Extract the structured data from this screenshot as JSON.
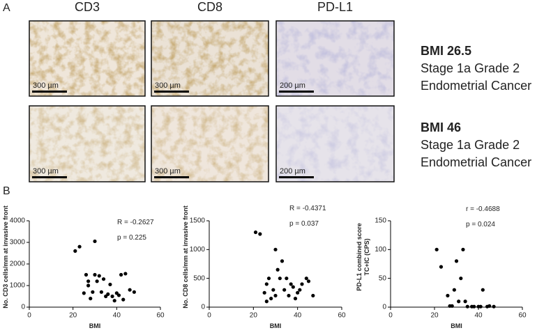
{
  "panel_a": {
    "label": "A",
    "columns": [
      "CD3",
      "CD8",
      "PD-L1"
    ],
    "rows": [
      {
        "bmi": "BMI 26.5",
        "lines": [
          "Stage 1a Grade 2",
          "Endometrial Cancer"
        ],
        "scales": [
          "300 µm",
          "300 µm",
          "200 µm"
        ]
      },
      {
        "bmi": "BMI 46",
        "lines": [
          "Stage 1a Grade 2",
          "Endometrial Cancer"
        ],
        "scales": [
          "300 µm",
          "300 µm",
          "200 µm"
        ]
      }
    ]
  },
  "panel_b": {
    "label": "B"
  },
  "chart_data": [
    {
      "type": "scatter",
      "xlabel": "BMI",
      "ylabel": [
        "No. CD3 cells/mm at invasive front"
      ],
      "annotations": [
        "R = -0.2627",
        "p = 0.225"
      ],
      "color": "#000000",
      "xlim": [
        0,
        60
      ],
      "xticks": [
        0,
        20,
        40,
        60
      ],
      "ylim": [
        0,
        4000
      ],
      "yticks": [
        0,
        1000,
        2000,
        3000,
        4000
      ],
      "x": [
        21,
        23,
        30,
        25,
        26,
        27,
        28,
        29,
        30,
        31,
        32,
        33,
        34,
        36,
        37,
        38,
        39,
        40,
        41,
        42,
        43,
        44,
        46,
        48,
        27,
        35
      ],
      "y": [
        2600,
        2800,
        3050,
        650,
        1500,
        1000,
        400,
        700,
        1500,
        1200,
        1450,
        700,
        1300,
        600,
        1050,
        500,
        300,
        650,
        550,
        1500,
        350,
        1550,
        800,
        700,
        1200,
        500
      ]
    },
    {
      "type": "scatter",
      "xlabel": "BMI",
      "ylabel": [
        "No. CD8 cells/mm at invasive front"
      ],
      "annotations": [
        "R  = -0.4371",
        "p = 0.037"
      ],
      "color": "#000000",
      "xlim": [
        0,
        60
      ],
      "xticks": [
        0,
        20,
        40,
        60
      ],
      "ylim": [
        0,
        1500
      ],
      "yticks": [
        0,
        500,
        1000,
        1500
      ],
      "x": [
        21,
        23,
        25,
        26,
        27,
        28,
        29,
        30,
        31,
        32,
        33,
        34,
        35,
        36,
        37,
        38,
        39,
        40,
        41,
        42,
        44,
        45,
        47,
        26,
        30
      ],
      "y": [
        1300,
        1270,
        250,
        400,
        500,
        150,
        300,
        1000,
        650,
        500,
        800,
        300,
        500,
        200,
        400,
        350,
        150,
        250,
        300,
        400,
        500,
        450,
        200,
        100,
        200
      ]
    },
    {
      "type": "scatter",
      "xlabel": "BMI",
      "ylabel": [
        "PD-L1 combined score",
        "TC+IC (CPS)"
      ],
      "annotations": [
        "r = -0.4688",
        "p = 0.024"
      ],
      "color": "#000000",
      "xlim": [
        0,
        60
      ],
      "xticks": [
        0,
        20,
        40,
        60
      ],
      "ylim": [
        0,
        150
      ],
      "yticks": [
        0,
        50,
        100,
        150
      ],
      "x": [
        21,
        23,
        26,
        27,
        28,
        30,
        31,
        32,
        33,
        34,
        35,
        37,
        38,
        40,
        41,
        42,
        44,
        45,
        47,
        29
      ],
      "y": [
        100,
        70,
        20,
        2,
        2,
        80,
        10,
        50,
        100,
        10,
        1,
        1,
        1,
        1,
        1,
        30,
        1,
        2,
        1,
        30
      ]
    }
  ]
}
